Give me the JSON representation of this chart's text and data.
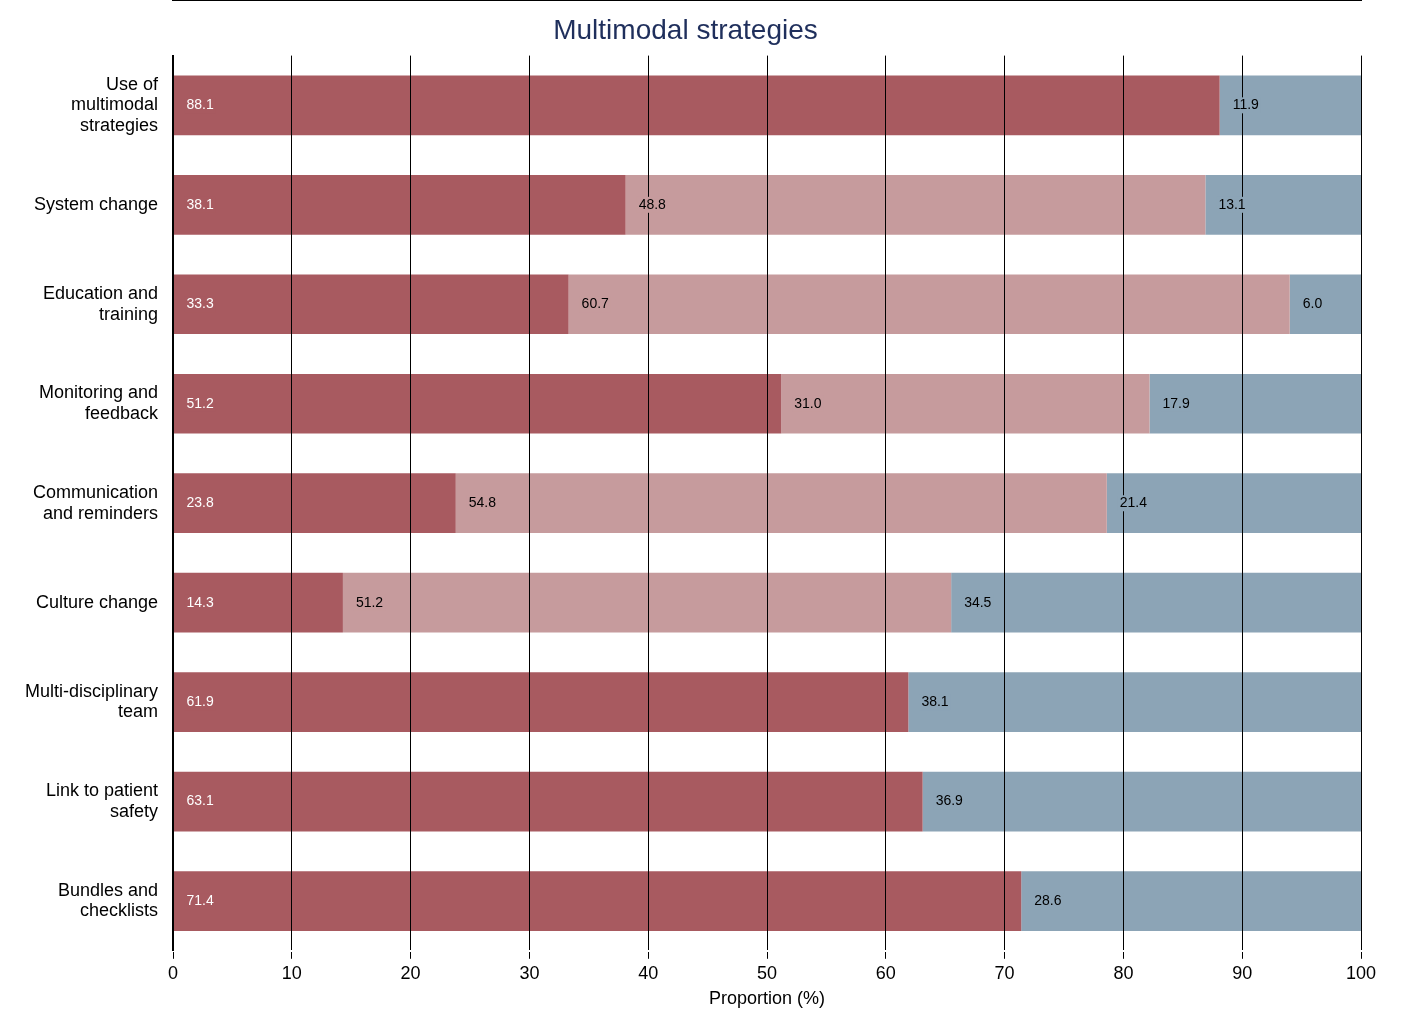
{
  "chart_data": {
    "type": "bar",
    "orientation": "horizontal",
    "stacked": true,
    "title": "Multimodal strategies",
    "xlabel": "Proportion (%)",
    "categories": [
      "Use of multimodal strategies",
      "System change",
      "Education and training",
      "Monitoring and feedback",
      "Communication and reminders",
      "Culture change",
      "Multi-disciplinary team",
      "Link to patient safety",
      "Bundles and checklists"
    ],
    "series": [
      {
        "color": "#a85a60",
        "values": [
          88.1,
          38.1,
          33.3,
          51.2,
          23.8,
          14.3,
          61.9,
          63.1,
          71.4
        ],
        "value_labels": [
          "88.1",
          "38.1",
          "33.3",
          "51.2",
          "23.8",
          "14.3",
          "61.9",
          "63.1",
          "71.4"
        ]
      },
      {
        "color": "#c69b9d",
        "values": [
          null,
          48.8,
          60.7,
          31.0,
          54.8,
          51.2,
          null,
          null,
          null
        ],
        "value_labels": [
          null,
          "48.8",
          "60.7",
          "31.0",
          "54.8",
          "51.2",
          null,
          null,
          null
        ]
      },
      {
        "color": "#8ca4b6",
        "values": [
          11.9,
          13.1,
          6.0,
          17.9,
          21.4,
          34.5,
          38.1,
          36.9,
          28.6
        ],
        "value_labels": [
          "11.9",
          "13.1",
          "6.0",
          "17.9",
          "21.4",
          "34.5",
          "38.1",
          "36.9",
          "28.6"
        ]
      }
    ],
    "xlim": [
      0,
      100
    ],
    "xticks": [
      0,
      10,
      20,
      30,
      40,
      50,
      60,
      70,
      80,
      90,
      100
    ],
    "grid": "x",
    "legend": false
  }
}
